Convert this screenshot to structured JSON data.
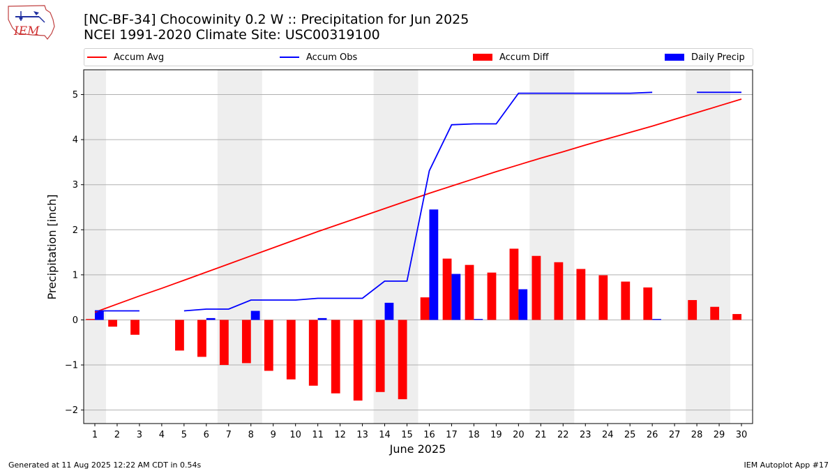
{
  "header": {
    "logo_text": "IEM",
    "title_line1": "[NC-BF-34] Chocowinity 0.2 W :: Precipitation for Jun 2025",
    "title_line2": "NCEI 1991-2020 Climate Site: USC00319100"
  },
  "footer": {
    "generated": "Generated at 11 Aug 2025 12:22 AM CDT in 0.54s",
    "app": "IEM Autoplot App #17"
  },
  "chart_data": {
    "type": "bar",
    "xlabel": "June 2025",
    "ylabel": "Precipitation [inch]",
    "xlim": [
      0.5,
      30.5
    ],
    "ylim": [
      -2.3,
      5.55
    ],
    "yticks": [
      -2,
      -1,
      0,
      1,
      2,
      3,
      4,
      5
    ],
    "ytick_labels": [
      "−2",
      "−1",
      "0",
      "1",
      "2",
      "3",
      "4",
      "5"
    ],
    "days": [
      1,
      2,
      3,
      4,
      5,
      6,
      7,
      8,
      9,
      10,
      11,
      12,
      13,
      14,
      15,
      16,
      17,
      18,
      19,
      20,
      21,
      22,
      23,
      24,
      25,
      26,
      27,
      28,
      29,
      30
    ],
    "grid": "horizontal",
    "legend_position": "top",
    "weekend_shading": [
      [
        0.5,
        1.5
      ],
      [
        6.5,
        8.5
      ],
      [
        13.5,
        15.5
      ],
      [
        20.5,
        22.5
      ],
      [
        27.5,
        29.5
      ]
    ],
    "series": [
      {
        "name": "Accum Avg",
        "kind": "line",
        "color": "#ff0000",
        "x": [
          1,
          2,
          3,
          4,
          5,
          6,
          7,
          8,
          9,
          10,
          11,
          12,
          13,
          14,
          15,
          16,
          17,
          18,
          19,
          20,
          21,
          22,
          23,
          24,
          25,
          26,
          27,
          28,
          29,
          30
        ],
        "values": [
          0.17,
          0.35,
          0.53,
          0.7,
          0.88,
          1.06,
          1.24,
          1.42,
          1.6,
          1.78,
          1.96,
          2.13,
          2.3,
          2.47,
          2.64,
          2.81,
          2.97,
          3.13,
          3.29,
          3.44,
          3.59,
          3.73,
          3.88,
          4.02,
          4.16,
          4.3,
          4.45,
          4.6,
          4.75,
          4.9
        ]
      },
      {
        "name": "Accum Obs",
        "kind": "line",
        "color": "#0000ff",
        "x": [
          1,
          2,
          3,
          4,
          5,
          6,
          7,
          8,
          9,
          10,
          11,
          12,
          13,
          14,
          15,
          16,
          17,
          18,
          19,
          20,
          21,
          22,
          23,
          24,
          25,
          26,
          27,
          28,
          29,
          30
        ],
        "values": [
          0.2,
          0.2,
          0.2,
          null,
          0.2,
          0.24,
          0.24,
          0.44,
          0.44,
          0.44,
          0.48,
          0.48,
          0.48,
          0.86,
          0.86,
          3.31,
          4.33,
          4.35,
          4.35,
          5.03,
          5.03,
          5.03,
          5.03,
          5.03,
          5.03,
          5.05,
          null,
          5.05,
          5.05,
          5.05
        ]
      },
      {
        "name": "Accum Diff",
        "kind": "bar",
        "color": "#ff0000",
        "offset": -0.2,
        "x": [
          1,
          2,
          3,
          5,
          6,
          7,
          8,
          9,
          10,
          11,
          12,
          13,
          14,
          15,
          16,
          17,
          18,
          19,
          20,
          21,
          22,
          23,
          24,
          25,
          26,
          28,
          29,
          30
        ],
        "values": [
          0.02,
          -0.15,
          -0.33,
          -0.68,
          -0.82,
          -1.0,
          -0.96,
          -1.13,
          -1.32,
          -1.46,
          -1.63,
          -1.79,
          -1.6,
          -1.76,
          0.5,
          1.36,
          1.22,
          1.05,
          1.58,
          1.42,
          1.28,
          1.13,
          0.99,
          0.85,
          0.72,
          0.44,
          0.29,
          0.13
        ]
      },
      {
        "name": "Daily Precip",
        "kind": "bar",
        "color": "#0000ff",
        "offset": 0.2,
        "x": [
          1,
          6,
          8,
          11,
          14,
          16,
          17,
          18,
          20,
          26
        ],
        "values": [
          0.2,
          0.04,
          0.2,
          0.04,
          0.38,
          2.45,
          1.02,
          0.02,
          0.68,
          0.02
        ]
      }
    ]
  }
}
